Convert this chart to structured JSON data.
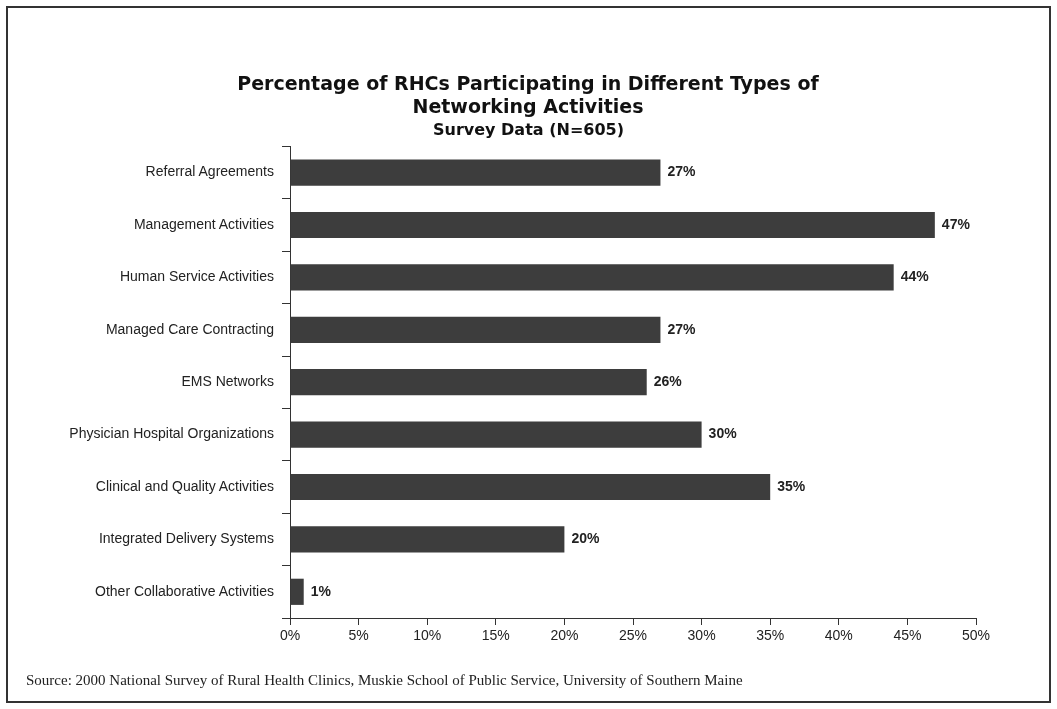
{
  "chart_data": {
    "type": "bar",
    "orientation": "horizontal",
    "title": "Percentage of RHCs Participating in Different Types of Networking Activities",
    "subtitle": "Survey Data (N=605)",
    "categories": [
      "Referral Agreements",
      "Management Activities",
      "Human Service Activities",
      "Managed Care Contracting",
      "EMS Networks",
      "Physician Hospital Organizations",
      "Clinical and Quality Activities",
      "Integrated Delivery Systems",
      "Other Collaborative Activities"
    ],
    "values": [
      27,
      47,
      44,
      27,
      26,
      30,
      35,
      20,
      1
    ],
    "value_labels": [
      "27%",
      "47%",
      "44%",
      "27%",
      "26%",
      "30%",
      "35%",
      "20%",
      "1%"
    ],
    "color": "#3d3d3d",
    "xlim": [
      0,
      50
    ],
    "xticks": [
      {
        "value": 0,
        "label": "0%"
      },
      {
        "value": 5,
        "label": "5%"
      },
      {
        "value": 10,
        "label": "10%"
      },
      {
        "value": 15,
        "label": "15%"
      },
      {
        "value": 20,
        "label": "20%"
      },
      {
        "value": 25,
        "label": "25%"
      },
      {
        "value": 30,
        "label": "30%"
      },
      {
        "value": 35,
        "label": "35%"
      },
      {
        "value": 40,
        "label": "40%"
      },
      {
        "value": 45,
        "label": "45%"
      },
      {
        "value": 50,
        "label": "50%"
      }
    ],
    "legend": false,
    "annotations": [
      "Source: 2000 National Survey of Rural Health Clinics, Muskie School of Public Service, University of Southern Maine"
    ]
  }
}
